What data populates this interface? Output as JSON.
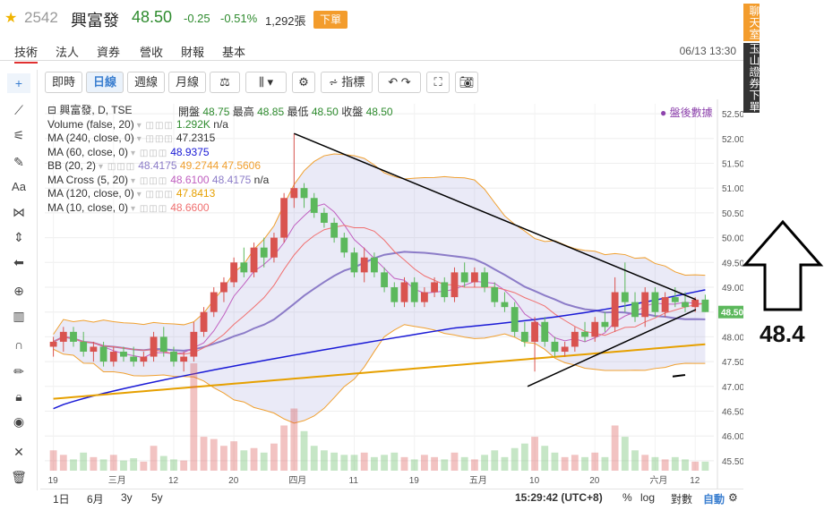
{
  "header": {
    "code": "2542",
    "name": "興富發",
    "price": "48.50",
    "change": "-0.25",
    "change_pct": "-0.51%",
    "volume": "1,292張",
    "order_button": "下單"
  },
  "tabs": [
    "技術",
    "法人",
    "資券",
    "營收",
    "財報",
    "基本"
  ],
  "datetime": "06/13 13:30",
  "side_banners": [
    "聊天室",
    "玉山證券下單"
  ],
  "toolbar": {
    "buttons": [
      "即時",
      "日線",
      "週線",
      "月線"
    ],
    "indicators_label": "指標",
    "active": "日線"
  },
  "legend": {
    "title": "興富發, D, TSE",
    "ohlc": {
      "open_label": "開盤",
      "open": "48.75",
      "high_label": "最高",
      "high": "48.85",
      "low_label": "最低",
      "low": "48.50",
      "close_label": "收盤",
      "close": "48.50"
    },
    "after_hours": "● 盤後數據",
    "rows": [
      {
        "label": "Volume (false, 20)",
        "v1": "1.292K",
        "v2": "n/a",
        "c1": "#2e8b2e",
        "c2": "#333333"
      },
      {
        "label": "MA (240, close, 0)",
        "v1": "47.2315",
        "c1": "#333333"
      },
      {
        "label": "MA (60, close, 0)",
        "v1": "48.9375",
        "c1": "#1a1ad6"
      },
      {
        "label": "BB (20, 2)",
        "v1": "48.4175",
        "v2": "49.2744",
        "v3": "47.5606",
        "c1": "#8c7cc8",
        "c2": "#f0a030",
        "c3": "#f0a030"
      },
      {
        "label": "MA Cross (5, 20)",
        "v1": "48.6100",
        "v2": "48.4175",
        "v3": "n/a",
        "c1": "#c060c0",
        "c2": "#8c7cc8",
        "c3": "#333333"
      },
      {
        "label": "MA (120, close, 0)",
        "v1": "47.8413",
        "c1": "#e6a000"
      },
      {
        "label": "MA (10, close, 0)",
        "v1": "48.6600",
        "c1": "#f07070"
      }
    ]
  },
  "axis": {
    "y_ticks": [
      "52.50",
      "52.00",
      "51.50",
      "51.00",
      "50.50",
      "50.00",
      "49.50",
      "49.00",
      "48.50",
      "48.00",
      "47.50",
      "47.00",
      "46.50",
      "46.00",
      "45.50"
    ],
    "last_price_tag": "48.50",
    "x_ticks": [
      "19",
      "三月",
      "12",
      "20",
      "四月",
      "11",
      "19",
      "五月",
      "10",
      "20",
      "六月",
      "12"
    ]
  },
  "bottom": {
    "ranges": [
      "1日",
      "6月",
      "3y",
      "5y"
    ],
    "clock": "15:29:42 (UTC+8)",
    "pct": "%",
    "log": "log",
    "auto_scale": "對數",
    "auto": "自動"
  },
  "annotation": "48.4",
  "chart_data": {
    "type": "candlestick",
    "ylim": [
      45.3,
      52.7
    ],
    "up_color": "#d9534f",
    "down_color": "#5cb85c",
    "candles": [
      [
        47.8,
        48.0,
        47.6,
        47.9
      ],
      [
        47.9,
        48.2,
        47.7,
        48.1
      ],
      [
        48.1,
        48.2,
        47.8,
        47.9
      ],
      [
        47.9,
        48.1,
        47.6,
        47.7
      ],
      [
        47.7,
        47.9,
        47.5,
        47.8
      ],
      [
        47.8,
        47.9,
        47.4,
        47.5
      ],
      [
        47.5,
        47.8,
        47.4,
        47.7
      ],
      [
        47.7,
        47.8,
        47.5,
        47.6
      ],
      [
        47.6,
        47.8,
        47.4,
        47.5
      ],
      [
        47.5,
        47.7,
        47.4,
        47.6
      ],
      [
        47.6,
        48.1,
        47.5,
        48.0
      ],
      [
        48.0,
        48.2,
        47.6,
        47.7
      ],
      [
        47.7,
        47.8,
        47.4,
        47.5
      ],
      [
        47.5,
        47.7,
        47.3,
        47.6
      ],
      [
        47.6,
        48.3,
        47.5,
        48.1
      ],
      [
        48.1,
        48.6,
        48.0,
        48.5
      ],
      [
        48.5,
        49.0,
        48.4,
        48.9
      ],
      [
        48.9,
        49.2,
        48.7,
        49.1
      ],
      [
        49.1,
        49.6,
        49.0,
        49.5
      ],
      [
        49.5,
        49.8,
        49.2,
        49.3
      ],
      [
        49.3,
        49.9,
        49.2,
        49.8
      ],
      [
        49.8,
        50.0,
        49.4,
        49.6
      ],
      [
        49.6,
        50.1,
        49.5,
        50.0
      ],
      [
        50.0,
        50.9,
        49.9,
        50.8
      ],
      [
        50.8,
        52.1,
        50.6,
        51.0
      ],
      [
        51.0,
        51.1,
        50.6,
        50.8
      ],
      [
        50.8,
        50.9,
        50.4,
        50.5
      ],
      [
        50.5,
        50.6,
        50.2,
        50.3
      ],
      [
        50.3,
        50.4,
        49.9,
        50.0
      ],
      [
        50.0,
        50.1,
        49.6,
        49.7
      ],
      [
        49.7,
        49.8,
        49.2,
        49.3
      ],
      [
        49.3,
        49.8,
        49.1,
        49.6
      ],
      [
        49.6,
        49.7,
        49.2,
        49.3
      ],
      [
        49.3,
        49.4,
        48.9,
        49.0
      ],
      [
        49.0,
        49.1,
        48.6,
        48.7
      ],
      [
        48.7,
        49.2,
        48.6,
        49.1
      ],
      [
        49.1,
        49.2,
        48.6,
        48.7
      ],
      [
        48.7,
        49.0,
        48.6,
        48.9
      ],
      [
        48.9,
        49.2,
        48.8,
        49.1
      ],
      [
        49.1,
        49.2,
        48.7,
        48.8
      ],
      [
        48.8,
        49.4,
        48.7,
        49.3
      ],
      [
        49.3,
        49.5,
        49.0,
        49.1
      ],
      [
        49.1,
        49.4,
        49.0,
        49.3
      ],
      [
        49.3,
        49.4,
        48.9,
        49.0
      ],
      [
        49.0,
        49.1,
        48.6,
        48.7
      ],
      [
        48.7,
        48.9,
        48.5,
        48.6
      ],
      [
        48.6,
        48.7,
        48.0,
        48.1
      ],
      [
        48.1,
        48.3,
        47.8,
        47.9
      ],
      [
        47.9,
        48.4,
        47.3,
        48.3
      ],
      [
        48.3,
        48.4,
        47.8,
        47.9
      ],
      [
        47.9,
        48.0,
        47.6,
        47.7
      ],
      [
        47.7,
        47.9,
        47.6,
        47.8
      ],
      [
        47.8,
        48.2,
        47.7,
        48.1
      ],
      [
        48.1,
        48.3,
        47.9,
        48.0
      ],
      [
        48.0,
        48.4,
        47.9,
        48.3
      ],
      [
        48.3,
        48.5,
        48.1,
        48.2
      ],
      [
        48.2,
        49.2,
        48.1,
        48.9
      ],
      [
        48.9,
        49.5,
        48.5,
        48.7
      ],
      [
        48.7,
        48.9,
        48.3,
        48.4
      ],
      [
        48.4,
        49.0,
        48.2,
        48.9
      ],
      [
        48.9,
        49.0,
        48.4,
        48.5
      ],
      [
        48.5,
        48.9,
        48.4,
        48.8
      ],
      [
        48.8,
        49.0,
        48.6,
        48.7
      ],
      [
        48.7,
        48.9,
        48.5,
        48.6
      ],
      [
        48.6,
        48.8,
        48.5,
        48.75
      ],
      [
        48.75,
        48.85,
        48.5,
        48.5
      ]
    ],
    "volume": [
      18,
      14,
      10,
      16,
      12,
      10,
      14,
      9,
      11,
      8,
      22,
      13,
      10,
      9,
      95,
      30,
      28,
      22,
      26,
      18,
      20,
      16,
      24,
      40,
      55,
      35,
      22,
      18,
      16,
      14,
      14,
      16,
      12,
      14,
      16,
      12,
      10,
      14,
      12,
      10,
      16,
      12,
      10,
      14,
      18,
      12,
      20,
      24,
      30,
      22,
      16,
      12,
      14,
      12,
      16,
      12,
      40,
      30,
      18,
      14,
      12,
      10,
      12,
      10,
      8,
      8
    ]
  }
}
